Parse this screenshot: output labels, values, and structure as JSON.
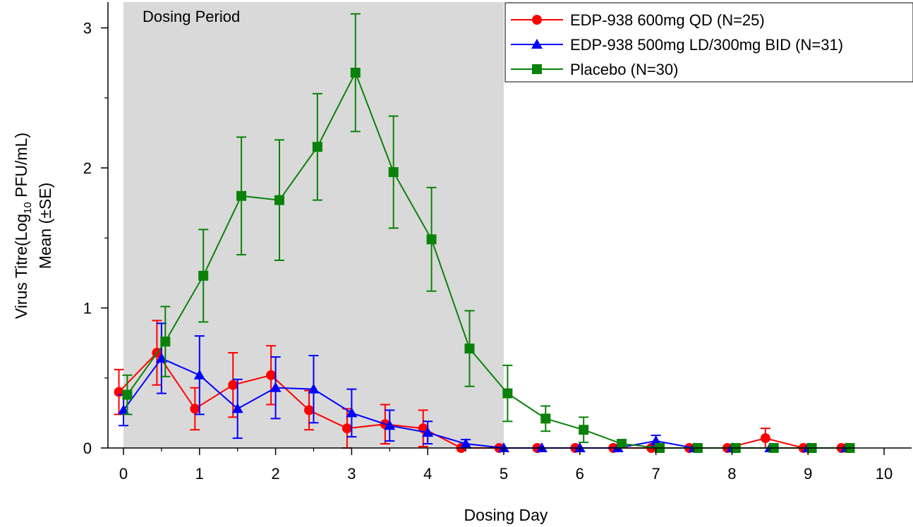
{
  "chart_data": {
    "type": "line",
    "xlabel": "Dosing Day",
    "ylabel": {
      "line1_pre": "Virus Titre(Log",
      "line1_sub": "10",
      "line1_post": " PFU/mL)",
      "line2": "Mean (±SE)"
    },
    "xlim": [
      -0.15,
      10.15
    ],
    "ylim": [
      0,
      3.18
    ],
    "xticks": [
      "0",
      "1",
      "2",
      "3",
      "4",
      "5",
      "6",
      "7",
      "8",
      "9",
      "10"
    ],
    "yticks": [
      "0",
      "1",
      "2",
      "3"
    ],
    "shaded_region": {
      "label": "Dosing Period",
      "x": [
        0,
        5
      ],
      "color": "#d9d9d9"
    },
    "legend_position": "top-right",
    "series": [
      {
        "name": "EDP-938 600mg QD (N=25)",
        "color": "#ff0000",
        "marker": "circle",
        "points": [
          {
            "x": -0.06,
            "y": 0.4,
            "se": 0.16
          },
          {
            "x": 0.44,
            "y": 0.68,
            "se": 0.23
          },
          {
            "x": 0.94,
            "y": 0.28,
            "se": 0.15
          },
          {
            "x": 1.44,
            "y": 0.45,
            "se": 0.23
          },
          {
            "x": 1.94,
            "y": 0.52,
            "se": 0.21
          },
          {
            "x": 2.44,
            "y": 0.27,
            "se": 0.14
          },
          {
            "x": 2.94,
            "y": 0.14,
            "se": 0.14
          },
          {
            "x": 3.44,
            "y": 0.17,
            "se": 0.14
          },
          {
            "x": 3.94,
            "y": 0.14,
            "se": 0.13
          },
          {
            "x": 4.44,
            "y": 0.0,
            "se": 0
          },
          {
            "x": 4.94,
            "y": 0.0,
            "se": 0
          },
          {
            "x": 5.44,
            "y": 0.0,
            "se": 0
          },
          {
            "x": 5.94,
            "y": 0.0,
            "se": 0
          },
          {
            "x": 6.44,
            "y": 0.0,
            "se": 0
          },
          {
            "x": 6.94,
            "y": 0.0,
            "se": 0
          },
          {
            "x": 7.44,
            "y": 0.0,
            "se": 0
          },
          {
            "x": 7.94,
            "y": 0.0,
            "se": 0
          },
          {
            "x": 8.44,
            "y": 0.07,
            "se": 0.07
          },
          {
            "x": 8.94,
            "y": 0.0,
            "se": 0
          },
          {
            "x": 9.44,
            "y": 0.0,
            "se": 0
          }
        ]
      },
      {
        "name": "EDP-938 500mg LD/300mg BID (N=31)",
        "color": "#0000ff",
        "marker": "triangle",
        "points": [
          {
            "x": 0.0,
            "y": 0.27,
            "se": 0.11
          },
          {
            "x": 0.5,
            "y": 0.64,
            "se": 0.25
          },
          {
            "x": 1.0,
            "y": 0.52,
            "se": 0.28
          },
          {
            "x": 1.5,
            "y": 0.28,
            "se": 0.21
          },
          {
            "x": 2.0,
            "y": 0.43,
            "se": 0.22
          },
          {
            "x": 2.5,
            "y": 0.42,
            "se": 0.24
          },
          {
            "x": 3.0,
            "y": 0.25,
            "se": 0.17
          },
          {
            "x": 3.5,
            "y": 0.16,
            "se": 0.11
          },
          {
            "x": 4.0,
            "y": 0.11,
            "se": 0.08
          },
          {
            "x": 4.5,
            "y": 0.03,
            "se": 0.03
          },
          {
            "x": 5.0,
            "y": 0.0,
            "se": 0
          },
          {
            "x": 5.5,
            "y": 0.0,
            "se": 0
          },
          {
            "x": 6.0,
            "y": 0.0,
            "se": 0
          },
          {
            "x": 6.5,
            "y": 0.0,
            "se": 0
          },
          {
            "x": 7.0,
            "y": 0.05,
            "se": 0.04
          },
          {
            "x": 7.5,
            "y": 0.0,
            "se": 0
          },
          {
            "x": 8.0,
            "y": 0.0,
            "se": 0
          },
          {
            "x": 8.5,
            "y": 0.0,
            "se": 0
          },
          {
            "x": 9.0,
            "y": 0.0,
            "se": 0
          },
          {
            "x": 9.5,
            "y": 0.0,
            "se": 0
          }
        ]
      },
      {
        "name": "Placebo (N=30)",
        "color": "#0a820a",
        "marker": "square",
        "points": [
          {
            "x": 0.05,
            "y": 0.38,
            "se": 0.14
          },
          {
            "x": 0.55,
            "y": 0.76,
            "se": 0.25
          },
          {
            "x": 1.05,
            "y": 1.23,
            "se": 0.33
          },
          {
            "x": 1.55,
            "y": 1.8,
            "se": 0.42
          },
          {
            "x": 2.05,
            "y": 1.77,
            "se": 0.43
          },
          {
            "x": 2.55,
            "y": 2.15,
            "se": 0.38
          },
          {
            "x": 3.05,
            "y": 2.68,
            "se": 0.42
          },
          {
            "x": 3.55,
            "y": 1.97,
            "se": 0.4
          },
          {
            "x": 4.05,
            "y": 1.49,
            "se": 0.37
          },
          {
            "x": 4.55,
            "y": 0.71,
            "se": 0.27
          },
          {
            "x": 5.05,
            "y": 0.39,
            "se": 0.2
          },
          {
            "x": 5.55,
            "y": 0.21,
            "se": 0.09
          },
          {
            "x": 6.05,
            "y": 0.13,
            "se": 0.09
          },
          {
            "x": 6.55,
            "y": 0.03,
            "se": 0
          },
          {
            "x": 7.05,
            "y": 0.0,
            "se": 0
          },
          {
            "x": 7.55,
            "y": 0.0,
            "se": 0
          },
          {
            "x": 8.05,
            "y": 0.0,
            "se": 0
          },
          {
            "x": 8.55,
            "y": 0.0,
            "se": 0
          },
          {
            "x": 9.05,
            "y": 0.0,
            "se": 0
          },
          {
            "x": 9.55,
            "y": 0.0,
            "se": 0
          }
        ]
      }
    ]
  }
}
